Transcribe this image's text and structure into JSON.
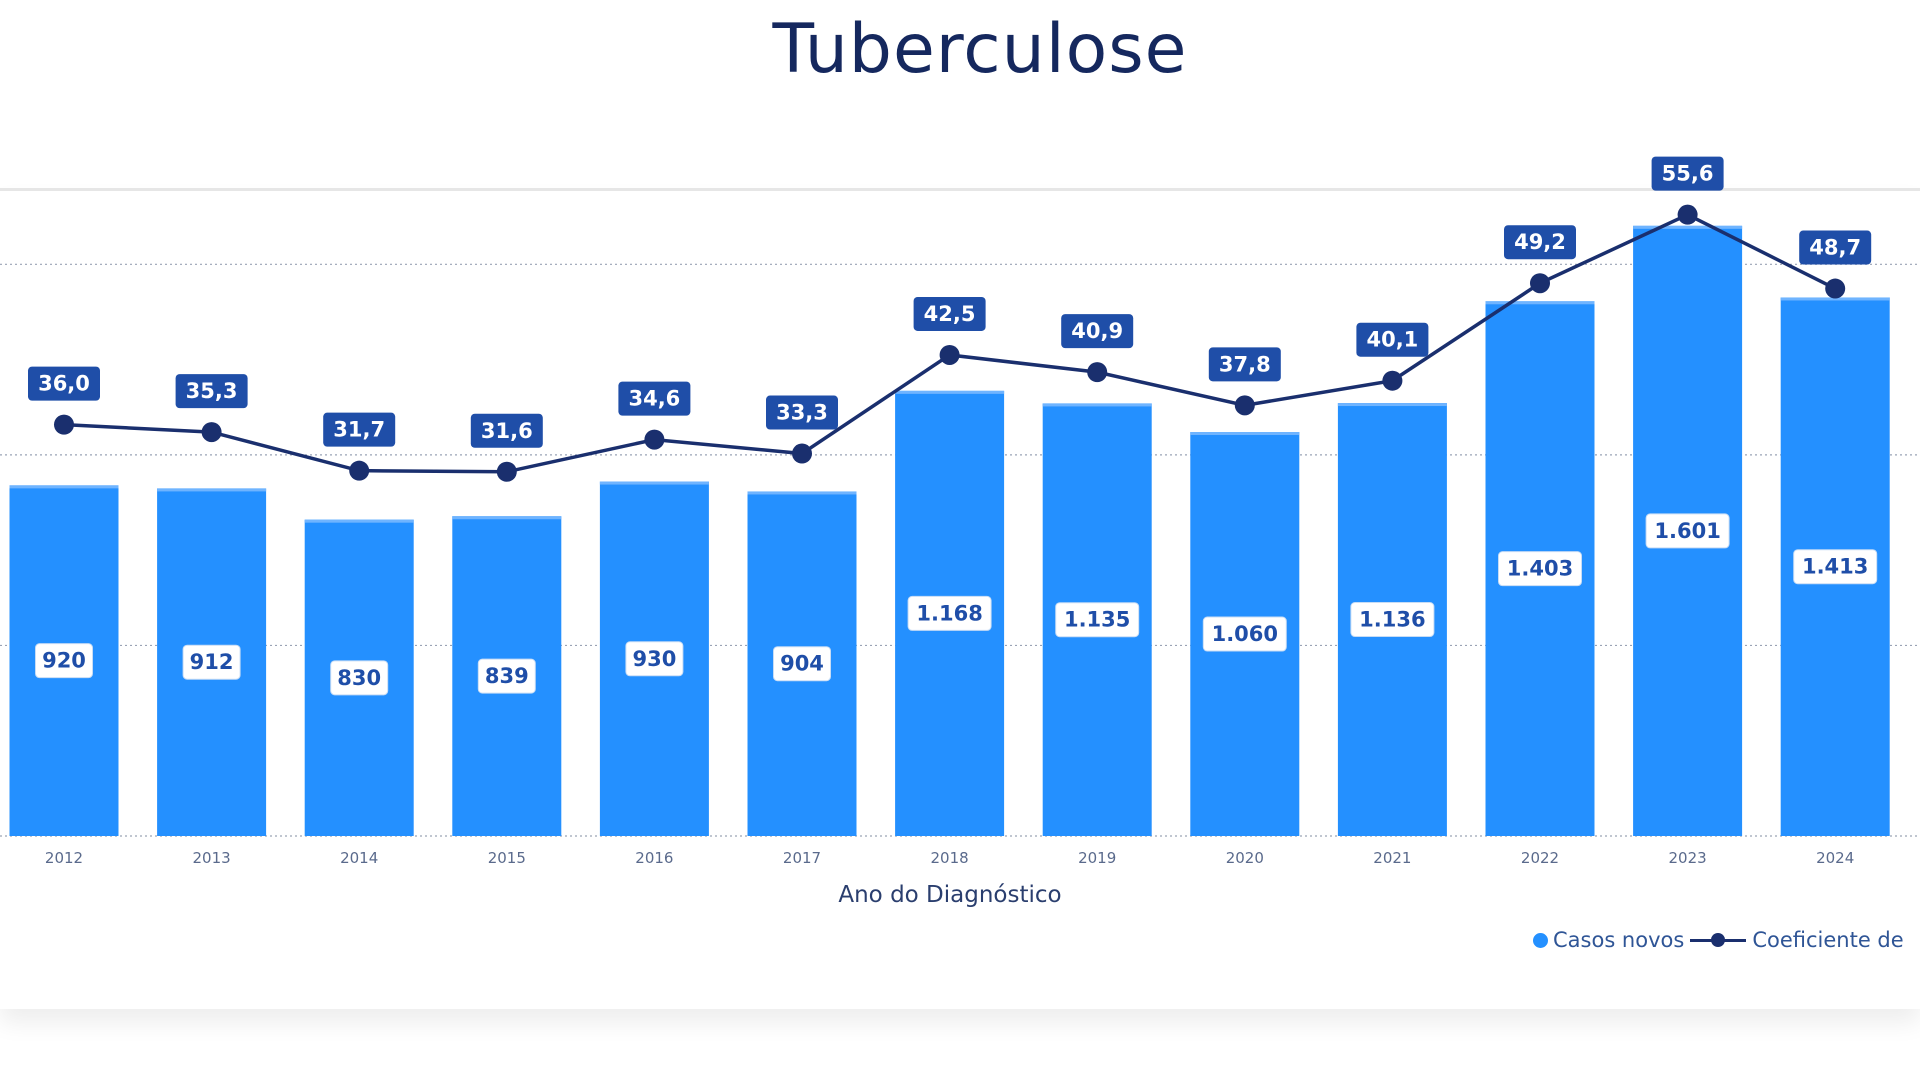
{
  "chart_data": {
    "type": "bar+line",
    "title": "Tuberculose",
    "xlabel": "Ano do Diagnóstico",
    "categories": [
      "2012",
      "2013",
      "2014",
      "2015",
      "2016",
      "2017",
      "2018",
      "2019",
      "2020",
      "2021",
      "2022",
      "2023",
      "2024"
    ],
    "series": [
      {
        "name": "Casos novos",
        "type": "bar",
        "values": [
          920,
          912,
          830,
          839,
          930,
          904,
          1168,
          1135,
          1060,
          1136,
          1403,
          1601,
          1413
        ],
        "labels": [
          "920",
          "912",
          "830",
          "839",
          "930",
          "904",
          "1.168",
          "1.135",
          "1.060",
          "1.136",
          "1.403",
          "1.601",
          "1.413"
        ],
        "color": "#2490ff",
        "ylim": [
          0,
          1695
        ]
      },
      {
        "name": "Coeficiente de",
        "type": "line",
        "values": [
          36.0,
          35.3,
          31.7,
          31.6,
          34.6,
          33.3,
          42.5,
          40.9,
          37.8,
          40.1,
          49.2,
          55.6,
          48.7
        ],
        "labels": [
          "36,0",
          "35,3",
          "31,7",
          "31,6",
          "34,6",
          "33,3",
          "42,5",
          "40,9",
          "37,8",
          "40,1",
          "49,2",
          "55,6",
          "48,7"
        ],
        "color": "#1a2f6e",
        "ylim": [
          -2.4,
          57.9
        ]
      }
    ],
    "gridlines": [
      0,
      500,
      1000,
      1500
    ],
    "grid": true,
    "legend_position": "bottom-right"
  }
}
